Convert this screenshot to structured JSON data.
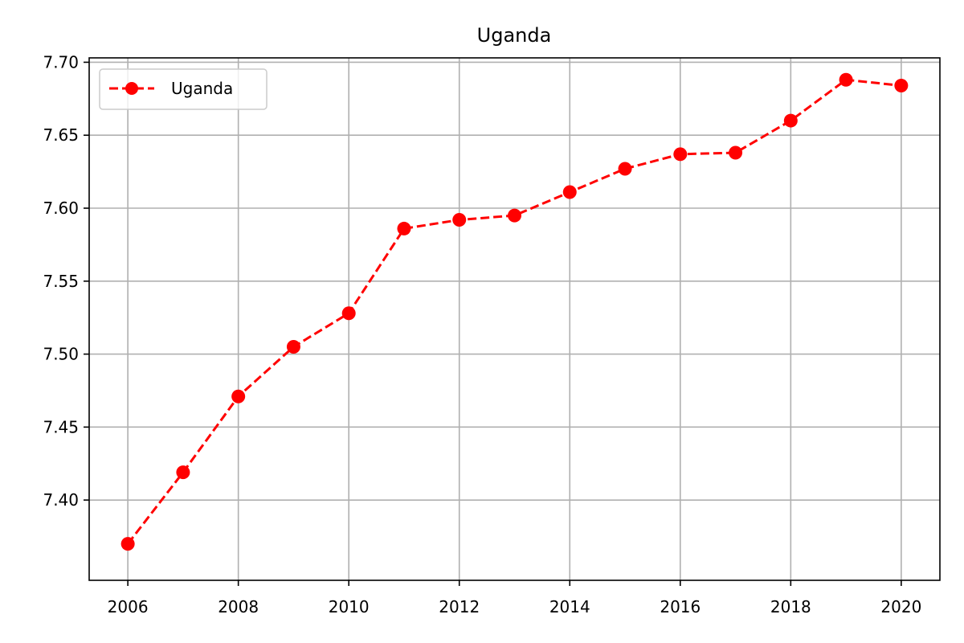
{
  "chart_data": {
    "type": "line",
    "title": "Uganda",
    "xlabel": "",
    "ylabel": "",
    "x": [
      2006,
      2007,
      2008,
      2009,
      2010,
      2011,
      2012,
      2013,
      2014,
      2015,
      2016,
      2017,
      2018,
      2019,
      2020
    ],
    "series": [
      {
        "name": "Uganda",
        "color": "#ff0000",
        "line_style": "dashed",
        "marker": "circle",
        "values": [
          7.37,
          7.419,
          7.471,
          7.505,
          7.528,
          7.586,
          7.592,
          7.595,
          7.611,
          7.627,
          7.637,
          7.638,
          7.66,
          7.688,
          7.684
        ]
      }
    ],
    "xlim": [
      2005.3,
      2020.7
    ],
    "ylim": [
      7.345,
      7.703
    ],
    "xticks": [
      2006,
      2008,
      2010,
      2012,
      2014,
      2016,
      2018,
      2020
    ],
    "xtick_labels": [
      "2006",
      "2008",
      "2010",
      "2012",
      "2014",
      "2016",
      "2018",
      "2020"
    ],
    "yticks": [
      7.4,
      7.45,
      7.5,
      7.55,
      7.6,
      7.65,
      7.7
    ],
    "ytick_labels": [
      "7.40",
      "7.45",
      "7.50",
      "7.55",
      "7.60",
      "7.65",
      "7.70"
    ],
    "grid": true,
    "legend_position": "top-left"
  }
}
